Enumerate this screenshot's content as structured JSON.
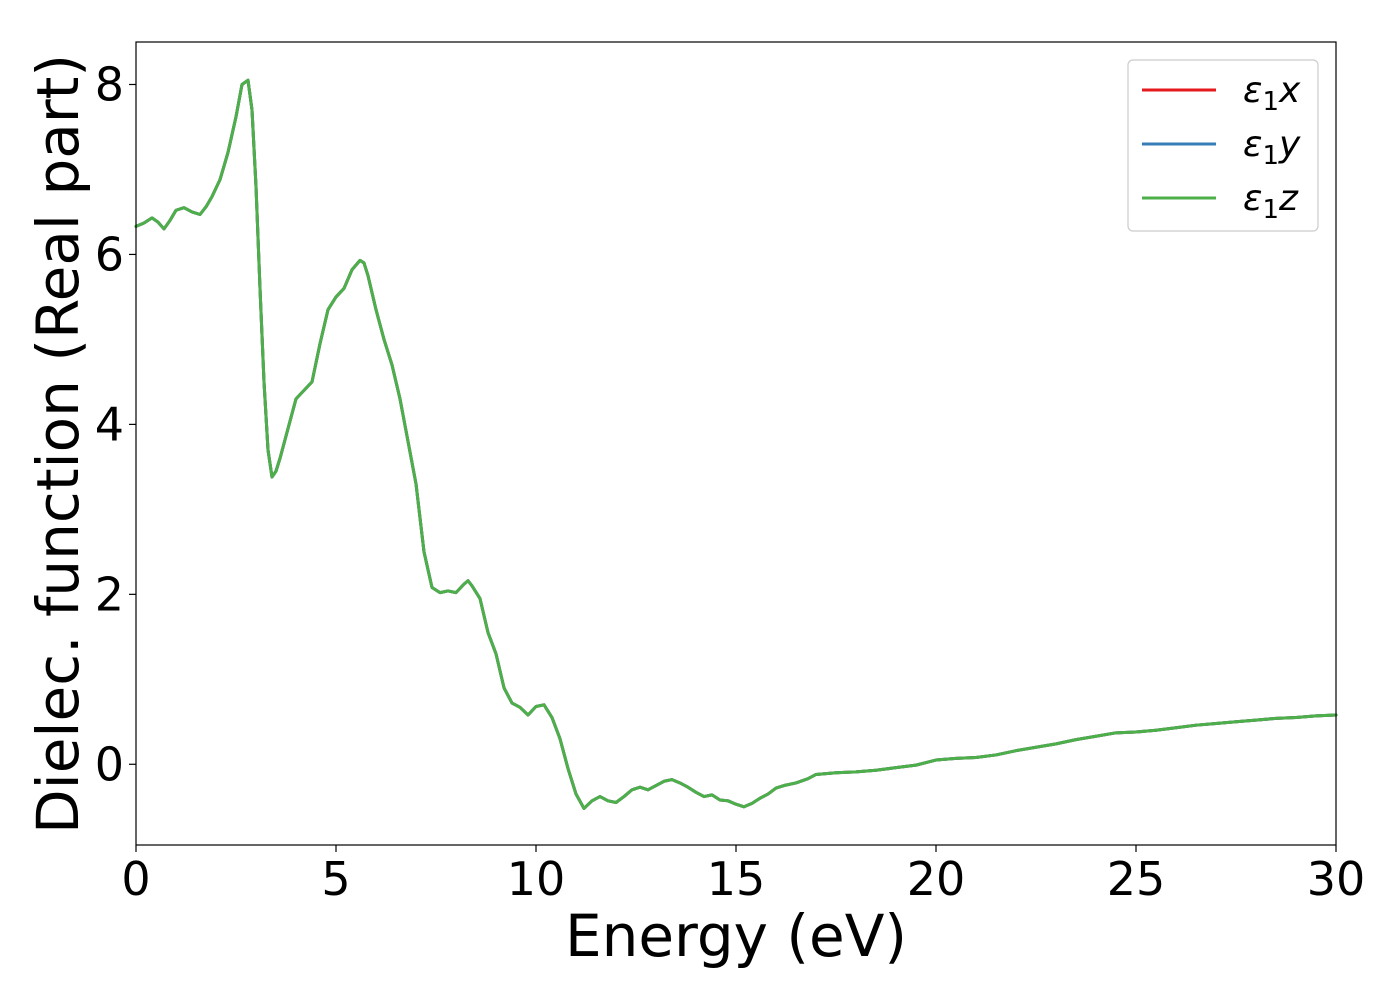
{
  "chart_data": {
    "type": "line",
    "title": "",
    "xlabel": "Energy (eV)",
    "ylabel": "Dielec. function (Real part)",
    "xlim": [
      0,
      30
    ],
    "ylim": [
      -0.95,
      8.5
    ],
    "xticks": [
      0,
      5,
      10,
      15,
      20,
      25,
      30
    ],
    "xtick_labels": [
      "0",
      "5",
      "10",
      "15",
      "20",
      "25",
      "30"
    ],
    "yticks": [
      0,
      2,
      4,
      6,
      8
    ],
    "ytick_labels": [
      "0",
      "2",
      "4",
      "6",
      "8"
    ],
    "grid": false,
    "legend_position": "top-right",
    "series": [
      {
        "name": "ε1x",
        "legend_main": "ε",
        "legend_sub": "1",
        "legend_var": "x",
        "color": "#e41a1c",
        "x": [
          0,
          0.2,
          0.4,
          0.55,
          0.7,
          0.85,
          1.0,
          1.2,
          1.4,
          1.6,
          1.75,
          1.9,
          2.1,
          2.3,
          2.5,
          2.65,
          2.8,
          2.9,
          3.0,
          3.1,
          3.2,
          3.3,
          3.4,
          3.5,
          3.6,
          3.8,
          4.0,
          4.2,
          4.4,
          4.6,
          4.8,
          5.0,
          5.2,
          5.4,
          5.6,
          5.7,
          5.8,
          6.0,
          6.2,
          6.4,
          6.6,
          6.8,
          7.0,
          7.2,
          7.4,
          7.6,
          7.8,
          8.0,
          8.2,
          8.3,
          8.4,
          8.6,
          8.8,
          9.0,
          9.2,
          9.4,
          9.6,
          9.8,
          10.0,
          10.2,
          10.4,
          10.6,
          10.8,
          11.0,
          11.2,
          11.4,
          11.6,
          11.8,
          12.0,
          12.2,
          12.4,
          12.6,
          12.8,
          13.0,
          13.2,
          13.4,
          13.6,
          13.8,
          14.0,
          14.2,
          14.4,
          14.6,
          14.8,
          15.0,
          15.2,
          15.4,
          15.6,
          15.8,
          16.0,
          16.2,
          16.5,
          16.8,
          17.0,
          17.5,
          18.0,
          18.5,
          19.0,
          19.5,
          20.0,
          20.5,
          21.0,
          21.5,
          22.0,
          22.5,
          23.0,
          23.5,
          24.0,
          24.5,
          25.0,
          25.5,
          26.0,
          26.5,
          27.0,
          27.5,
          28.0,
          28.5,
          29.0,
          29.5,
          30.0
        ],
        "y": [
          6.33,
          6.37,
          6.43,
          6.38,
          6.3,
          6.4,
          6.52,
          6.55,
          6.5,
          6.47,
          6.56,
          6.68,
          6.88,
          7.2,
          7.62,
          8.0,
          8.05,
          7.7,
          6.8,
          5.6,
          4.5,
          3.7,
          3.38,
          3.45,
          3.6,
          3.95,
          4.3,
          4.4,
          4.5,
          4.95,
          5.35,
          5.5,
          5.6,
          5.82,
          5.93,
          5.9,
          5.75,
          5.35,
          5.0,
          4.7,
          4.3,
          3.8,
          3.3,
          2.5,
          2.08,
          2.02,
          2.04,
          2.02,
          2.12,
          2.16,
          2.1,
          1.95,
          1.55,
          1.3,
          0.9,
          0.72,
          0.67,
          0.58,
          0.68,
          0.7,
          0.55,
          0.3,
          -0.05,
          -0.35,
          -0.52,
          -0.43,
          -0.38,
          -0.43,
          -0.45,
          -0.38,
          -0.3,
          -0.27,
          -0.3,
          -0.25,
          -0.2,
          -0.18,
          -0.22,
          -0.27,
          -0.33,
          -0.38,
          -0.36,
          -0.42,
          -0.43,
          -0.47,
          -0.5,
          -0.46,
          -0.4,
          -0.35,
          -0.28,
          -0.25,
          -0.22,
          -0.17,
          -0.12,
          -0.1,
          -0.09,
          -0.07,
          -0.04,
          -0.01,
          0.05,
          0.07,
          0.08,
          0.11,
          0.16,
          0.2,
          0.24,
          0.29,
          0.33,
          0.37,
          0.38,
          0.4,
          0.43,
          0.46,
          0.48,
          0.5,
          0.52,
          0.54,
          0.55,
          0.57,
          0.58
        ]
      },
      {
        "name": "ε1y",
        "legend_main": "ε",
        "legend_sub": "1",
        "legend_var": "y",
        "color": "#377eb8",
        "x": [
          0,
          0.2,
          0.4,
          0.55,
          0.7,
          0.85,
          1.0,
          1.2,
          1.4,
          1.6,
          1.75,
          1.9,
          2.1,
          2.3,
          2.5,
          2.65,
          2.8,
          2.9,
          3.0,
          3.1,
          3.2,
          3.3,
          3.4,
          3.5,
          3.6,
          3.8,
          4.0,
          4.2,
          4.4,
          4.6,
          4.8,
          5.0,
          5.2,
          5.4,
          5.6,
          5.7,
          5.8,
          6.0,
          6.2,
          6.4,
          6.6,
          6.8,
          7.0,
          7.2,
          7.4,
          7.6,
          7.8,
          8.0,
          8.2,
          8.3,
          8.4,
          8.6,
          8.8,
          9.0,
          9.2,
          9.4,
          9.6,
          9.8,
          10.0,
          10.2,
          10.4,
          10.6,
          10.8,
          11.0,
          11.2,
          11.4,
          11.6,
          11.8,
          12.0,
          12.2,
          12.4,
          12.6,
          12.8,
          13.0,
          13.2,
          13.4,
          13.6,
          13.8,
          14.0,
          14.2,
          14.4,
          14.6,
          14.8,
          15.0,
          15.2,
          15.4,
          15.6,
          15.8,
          16.0,
          16.2,
          16.5,
          16.8,
          17.0,
          17.5,
          18.0,
          18.5,
          19.0,
          19.5,
          20.0,
          20.5,
          21.0,
          21.5,
          22.0,
          22.5,
          23.0,
          23.5,
          24.0,
          24.5,
          25.0,
          25.5,
          26.0,
          26.5,
          27.0,
          27.5,
          28.0,
          28.5,
          29.0,
          29.5,
          30.0
        ],
        "y": [
          6.33,
          6.37,
          6.43,
          6.38,
          6.3,
          6.4,
          6.52,
          6.55,
          6.5,
          6.47,
          6.56,
          6.68,
          6.88,
          7.2,
          7.62,
          8.0,
          8.05,
          7.7,
          6.8,
          5.6,
          4.5,
          3.7,
          3.38,
          3.45,
          3.6,
          3.95,
          4.3,
          4.4,
          4.5,
          4.95,
          5.35,
          5.5,
          5.6,
          5.82,
          5.93,
          5.9,
          5.75,
          5.35,
          5.0,
          4.7,
          4.3,
          3.8,
          3.3,
          2.5,
          2.08,
          2.02,
          2.04,
          2.02,
          2.12,
          2.16,
          2.1,
          1.95,
          1.55,
          1.3,
          0.9,
          0.72,
          0.67,
          0.58,
          0.68,
          0.7,
          0.55,
          0.3,
          -0.05,
          -0.35,
          -0.52,
          -0.43,
          -0.38,
          -0.43,
          -0.45,
          -0.38,
          -0.3,
          -0.27,
          -0.3,
          -0.25,
          -0.2,
          -0.18,
          -0.22,
          -0.27,
          -0.33,
          -0.38,
          -0.36,
          -0.42,
          -0.43,
          -0.47,
          -0.5,
          -0.46,
          -0.4,
          -0.35,
          -0.28,
          -0.25,
          -0.22,
          -0.17,
          -0.12,
          -0.1,
          -0.09,
          -0.07,
          -0.04,
          -0.01,
          0.05,
          0.07,
          0.08,
          0.11,
          0.16,
          0.2,
          0.24,
          0.29,
          0.33,
          0.37,
          0.38,
          0.4,
          0.43,
          0.46,
          0.48,
          0.5,
          0.52,
          0.54,
          0.55,
          0.57,
          0.58
        ]
      },
      {
        "name": "ε1z",
        "legend_main": "ε",
        "legend_sub": "1",
        "legend_var": "z",
        "color": "#4daf4a",
        "x": [
          0,
          0.2,
          0.4,
          0.55,
          0.7,
          0.85,
          1.0,
          1.2,
          1.4,
          1.6,
          1.75,
          1.9,
          2.1,
          2.3,
          2.5,
          2.65,
          2.8,
          2.9,
          3.0,
          3.1,
          3.2,
          3.3,
          3.4,
          3.5,
          3.6,
          3.8,
          4.0,
          4.2,
          4.4,
          4.6,
          4.8,
          5.0,
          5.2,
          5.4,
          5.6,
          5.7,
          5.8,
          6.0,
          6.2,
          6.4,
          6.6,
          6.8,
          7.0,
          7.2,
          7.4,
          7.6,
          7.8,
          8.0,
          8.2,
          8.3,
          8.4,
          8.6,
          8.8,
          9.0,
          9.2,
          9.4,
          9.6,
          9.8,
          10.0,
          10.2,
          10.4,
          10.6,
          10.8,
          11.0,
          11.2,
          11.4,
          11.6,
          11.8,
          12.0,
          12.2,
          12.4,
          12.6,
          12.8,
          13.0,
          13.2,
          13.4,
          13.6,
          13.8,
          14.0,
          14.2,
          14.4,
          14.6,
          14.8,
          15.0,
          15.2,
          15.4,
          15.6,
          15.8,
          16.0,
          16.2,
          16.5,
          16.8,
          17.0,
          17.5,
          18.0,
          18.5,
          19.0,
          19.5,
          20.0,
          20.5,
          21.0,
          21.5,
          22.0,
          22.5,
          23.0,
          23.5,
          24.0,
          24.5,
          25.0,
          25.5,
          26.0,
          26.5,
          27.0,
          27.5,
          28.0,
          28.5,
          29.0,
          29.5,
          30.0
        ],
        "y": [
          6.33,
          6.37,
          6.43,
          6.38,
          6.3,
          6.4,
          6.52,
          6.55,
          6.5,
          6.47,
          6.56,
          6.68,
          6.88,
          7.2,
          7.62,
          8.0,
          8.05,
          7.7,
          6.8,
          5.6,
          4.5,
          3.7,
          3.38,
          3.45,
          3.6,
          3.95,
          4.3,
          4.4,
          4.5,
          4.95,
          5.35,
          5.5,
          5.6,
          5.82,
          5.93,
          5.9,
          5.75,
          5.35,
          5.0,
          4.7,
          4.3,
          3.8,
          3.3,
          2.5,
          2.08,
          2.02,
          2.04,
          2.02,
          2.12,
          2.16,
          2.1,
          1.95,
          1.55,
          1.3,
          0.9,
          0.72,
          0.67,
          0.58,
          0.68,
          0.7,
          0.55,
          0.3,
          -0.05,
          -0.35,
          -0.52,
          -0.43,
          -0.38,
          -0.43,
          -0.45,
          -0.38,
          -0.3,
          -0.27,
          -0.3,
          -0.25,
          -0.2,
          -0.18,
          -0.22,
          -0.27,
          -0.33,
          -0.38,
          -0.36,
          -0.42,
          -0.43,
          -0.47,
          -0.5,
          -0.46,
          -0.4,
          -0.35,
          -0.28,
          -0.25,
          -0.22,
          -0.17,
          -0.12,
          -0.1,
          -0.09,
          -0.07,
          -0.04,
          -0.01,
          0.05,
          0.07,
          0.08,
          0.11,
          0.16,
          0.2,
          0.24,
          0.29,
          0.33,
          0.37,
          0.38,
          0.4,
          0.43,
          0.46,
          0.48,
          0.5,
          0.52,
          0.54,
          0.55,
          0.57,
          0.58
        ]
      }
    ]
  }
}
